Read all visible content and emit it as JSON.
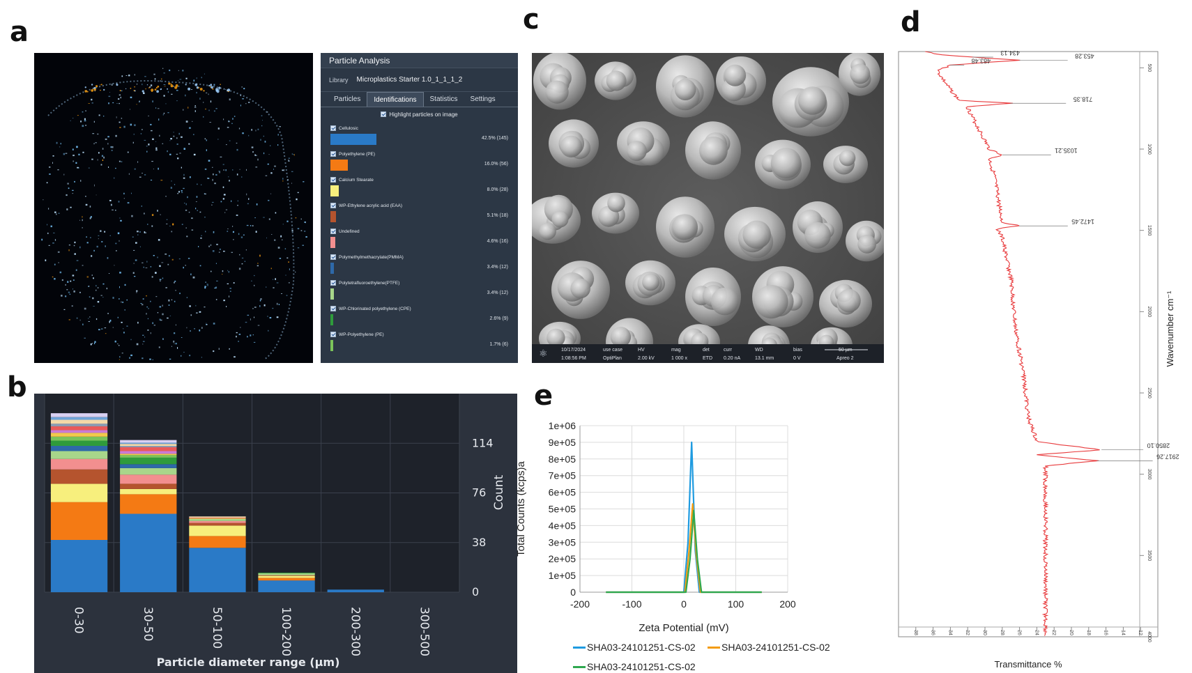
{
  "panel_labels": {
    "a": "a",
    "b": "b",
    "c": "c",
    "d": "d",
    "e": "e"
  },
  "particle_analysis": {
    "title": "Particle Analysis",
    "library_label": "Library",
    "library_value": "Microplastics Starter 1.0_1_1_1_2",
    "tabs": [
      "Particles",
      "Identifications",
      "Statistics",
      "Settings"
    ],
    "active_tab": "Identifications",
    "highlight_label": "Highlight particles on image",
    "items": [
      {
        "name": "Cellulosic",
        "value": "42.5% (145)",
        "fraction": 0.425,
        "color": "#2a7ac7"
      },
      {
        "name": "Polyethylene (PE)",
        "value": "16.0% (56)",
        "fraction": 0.16,
        "color": "#f47a14"
      },
      {
        "name": "Calcium Stearate",
        "value": "8.0% (28)",
        "fraction": 0.08,
        "color": "#f7ef7d"
      },
      {
        "name": "WP-Ethylene acrylic acid (EAA)",
        "value": "5.1% (18)",
        "fraction": 0.051,
        "color": "#b5542e"
      },
      {
        "name": "Undefined",
        "value": "4.6% (16)",
        "fraction": 0.046,
        "color": "#f28f8f"
      },
      {
        "name": "Polymethylmethacrylate(PMMA)",
        "value": "3.4% (12)",
        "fraction": 0.034,
        "color": "#2e69a8"
      },
      {
        "name": "Polytetrafluoroethylene(PTFE)",
        "value": "3.4% (12)",
        "fraction": 0.034,
        "color": "#a8d68a"
      },
      {
        "name": "WP-Chlorinated polyethylene (CPE)",
        "value": "2.6% (9)",
        "fraction": 0.026,
        "color": "#2f9b3b"
      },
      {
        "name": "WP-Polyethylene (PE)",
        "value": "1.7% (6)",
        "fraction": 0.017,
        "color": "#7bc35a"
      }
    ]
  },
  "sem": {
    "date": "10/17/2024",
    "time": "1:08:56 PM",
    "use_case_label": "use case",
    "use_case": "OptiPlan",
    "hv_label": "HV",
    "hv": "2.00 kV",
    "mag_label": "mag",
    "mag": "1 000 x",
    "det_label": "det",
    "det": "ETD",
    "curr_label": "curr",
    "curr": "0.20 nA",
    "wd_label": "WD",
    "wd": "13.1 mm",
    "bias_label": "bias",
    "bias": "0 V",
    "scale": "50 µm",
    "instrument": "Apreo 2"
  },
  "chart_data": [
    {
      "id": "b",
      "type": "bar",
      "stacked": true,
      "categories": [
        "0-30",
        "30-50",
        "50-100",
        "100-200",
        "200-300",
        "300-500"
      ],
      "xlabel": "Particle diameter range  (µm)",
      "ylabel": "Count",
      "yticks": [
        0,
        38,
        76,
        114
      ],
      "ylim": [
        0,
        152
      ],
      "grid": true,
      "series": [
        {
          "color": "#2a7ac7",
          "values": [
            40,
            60,
            34,
            9,
            2,
            0
          ]
        },
        {
          "color": "#f47a14",
          "values": [
            29,
            15,
            9,
            2,
            0,
            0
          ]
        },
        {
          "color": "#f7ef7d",
          "values": [
            14,
            4,
            8,
            1.5,
            0,
            0
          ]
        },
        {
          "color": "#b5542e",
          "values": [
            11,
            4,
            2,
            0.5,
            0,
            0
          ]
        },
        {
          "color": "#f28f8f",
          "values": [
            8,
            7,
            1.5,
            0,
            0,
            0
          ]
        },
        {
          "color": "#a8d68a",
          "values": [
            6,
            5,
            1.5,
            1.5,
            0,
            0
          ]
        },
        {
          "color": "#2e69a8",
          "values": [
            4,
            3,
            0,
            0,
            0,
            0
          ]
        },
        {
          "color": "#2f9b3b",
          "values": [
            4,
            5,
            0,
            0.5,
            0,
            0
          ]
        },
        {
          "color": "#7bc35a",
          "values": [
            3,
            2,
            0,
            0,
            0,
            0
          ]
        },
        {
          "color": "#f2c94c",
          "values": [
            3,
            1,
            0.5,
            0,
            0,
            0
          ]
        },
        {
          "color": "#c97bd6",
          "values": [
            2,
            2,
            0,
            0,
            0,
            0
          ]
        },
        {
          "color": "#e85a5a",
          "values": [
            3,
            3,
            0.5,
            0,
            0,
            0
          ]
        },
        {
          "color": "#8e9fb5",
          "values": [
            2,
            1,
            0,
            0,
            0,
            0
          ]
        },
        {
          "color": "#f3d9a8",
          "values": [
            3,
            1.5,
            1,
            0,
            0,
            0
          ]
        },
        {
          "color": "#6fa3d8",
          "values": [
            2,
            1,
            0,
            0,
            0,
            0
          ]
        },
        {
          "color": "#d9d0f2",
          "values": [
            3,
            2,
            0,
            0,
            0,
            0
          ]
        }
      ]
    },
    {
      "id": "e",
      "type": "line",
      "xlabel": "Zeta Potential (mV)",
      "ylabel": "Total Counts (kcps)a",
      "xlim": [
        -200,
        200
      ],
      "xticks": [
        -200,
        -100,
        0,
        100,
        200
      ],
      "ylim": [
        0,
        1000000
      ],
      "yticks": [
        "0",
        "1e+05",
        "2e+05",
        "3e+05",
        "4e+05",
        "5e+05",
        "6e+05",
        "7e+05",
        "8e+05",
        "9e+05",
        "1e+06"
      ],
      "grid": true,
      "legend": "bottom",
      "series": [
        {
          "name": "SHA03-24101251-CS-02",
          "color": "#1f9be0",
          "x": [
            -150,
            0,
            8,
            15,
            22,
            30,
            150
          ],
          "y": [
            0,
            0,
            300000,
            900000,
            250000,
            0,
            0
          ]
        },
        {
          "name": "SHA03-24101251-CS-02",
          "color": "#f39c12",
          "x": [
            -150,
            2,
            10,
            17,
            24,
            32,
            150
          ],
          "y": [
            0,
            0,
            250000,
            530000,
            220000,
            0,
            0
          ]
        },
        {
          "name": "SHA03-24101251-CS-02",
          "color": "#2fa84f",
          "x": [
            -150,
            4,
            12,
            19,
            26,
            34,
            150
          ],
          "y": [
            0,
            0,
            200000,
            490000,
            200000,
            0,
            0
          ]
        }
      ]
    },
    {
      "id": "d",
      "type": "line",
      "xlabel": "Wavenumber cm⁻¹",
      "ylabel": "Transmittance %",
      "xlim": [
        400,
        4000
      ],
      "xticks": [
        500,
        1000,
        1500,
        2000,
        2500,
        3000,
        3500,
        4000
      ],
      "ylim": [
        10,
        40
      ],
      "yticks": [
        38,
        36,
        34,
        32,
        30,
        28,
        26,
        24,
        22,
        20,
        18,
        16,
        14,
        12
      ],
      "peaks": [
        {
          "x": 434.13,
          "label": "434.13"
        },
        {
          "x": 453.28,
          "label": "453.28"
        },
        {
          "x": 483.48,
          "label": "483.48"
        },
        {
          "x": 718.35,
          "label": "718.35"
        },
        {
          "x": 1035.21,
          "label": "1035.21"
        },
        {
          "x": 1472.45,
          "label": "1472.45"
        },
        {
          "x": 2850.1,
          "label": "2850.10"
        },
        {
          "x": 2917.26,
          "label": "2917.26"
        }
      ],
      "series": [
        {
          "color": "#e8393b",
          "x": [
            400,
            420,
            434,
            453,
            483,
            520,
            600,
            700,
            718,
            740,
            800,
            900,
            1000,
            1035,
            1060,
            1150,
            1300,
            1450,
            1472,
            1490,
            1550,
            1800,
            2100,
            2400,
            2650,
            2800,
            2850,
            2880,
            2917,
            2950,
            3050,
            3300,
            3600,
            4000
          ],
          "y": [
            37,
            35,
            31.5,
            26,
            34,
            35.5,
            34.5,
            33,
            27,
            32,
            31.5,
            30.5,
            29.5,
            28,
            29.5,
            29,
            28.5,
            28,
            26,
            28.5,
            28,
            27,
            26.5,
            25.5,
            25,
            24,
            16.5,
            24,
            17,
            23,
            23,
            23,
            23,
            23
          ]
        }
      ]
    }
  ]
}
